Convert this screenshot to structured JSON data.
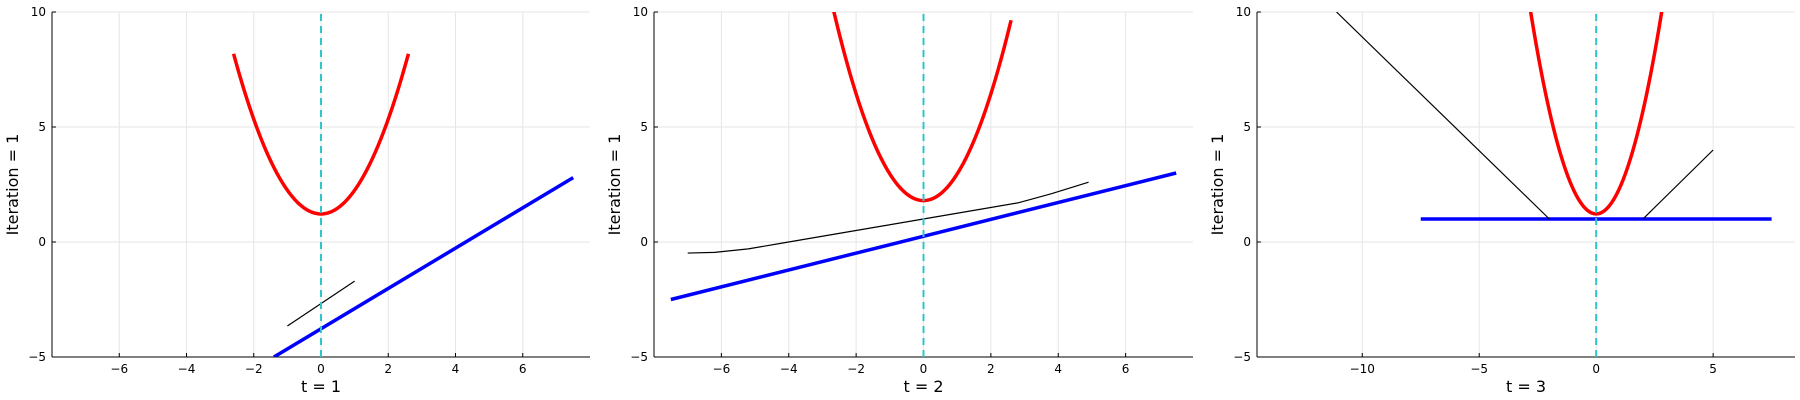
{
  "chart_data": [
    {
      "type": "line",
      "xlabel": "t = 1",
      "ylabel": "Iteration = 1",
      "xlim": [
        -8,
        8
      ],
      "ylim": [
        -5,
        10
      ],
      "xticks": [
        -6,
        -4,
        -2,
        0,
        2,
        4,
        6
      ],
      "yticks": [
        -5,
        0,
        5,
        10
      ],
      "grid": true,
      "series": [
        {
          "color": "#ff0000",
          "style": "solid",
          "width": 3.5,
          "kind": "parabola",
          "a": 1.03,
          "x0": 0,
          "y0": 1.22,
          "domain": [
            -2.6,
            2.6
          ]
        },
        {
          "color": "#0000ff",
          "style": "solid",
          "width": 3.5,
          "x": [
            -1.4,
            7.5
          ],
          "y": [
            -5,
            2.8
          ]
        },
        {
          "color": "#000000",
          "style": "solid",
          "width": 1.2,
          "x": [
            -1,
            1
          ],
          "y": [
            -3.65,
            -1.7
          ]
        },
        {
          "color": "#30c4cc",
          "style": "dashed",
          "width": 2,
          "x": [
            0,
            0
          ],
          "y": [
            -5,
            10
          ]
        }
      ]
    },
    {
      "type": "line",
      "xlabel": "t = 2",
      "ylabel": "Iteration = 1",
      "xlim": [
        -8,
        8
      ],
      "ylim": [
        -5,
        10
      ],
      "xticks": [
        -6,
        -4,
        -2,
        0,
        2,
        4,
        6
      ],
      "yticks": [
        -5,
        0,
        5,
        10
      ],
      "grid": true,
      "series": [
        {
          "color": "#ff0000",
          "style": "solid",
          "width": 3.5,
          "kind": "parabola",
          "a": 1.16,
          "x0": 0,
          "y0": 1.8,
          "domain": [
            -2.8,
            2.6
          ]
        },
        {
          "color": "#0000ff",
          "style": "solid",
          "width": 3.5,
          "x": [
            -7.5,
            7.5
          ],
          "y": [
            -2.5,
            3.0
          ]
        },
        {
          "color": "#000000",
          "style": "solid",
          "width": 1.2,
          "x": [
            -7,
            -6.2,
            -5.2,
            -4.2,
            -3.2,
            -2.2,
            -1.2,
            -0.2,
            0.8,
            1.8,
            2.8,
            3.8,
            4.9
          ],
          "y": [
            -0.48,
            -0.45,
            -0.3,
            -0.05,
            0.2,
            0.45,
            0.7,
            0.95,
            1.2,
            1.45,
            1.7,
            2.1,
            2.6
          ]
        },
        {
          "color": "#30c4cc",
          "style": "dashed",
          "width": 2,
          "x": [
            0,
            0
          ],
          "y": [
            -5,
            10
          ]
        }
      ]
    },
    {
      "type": "line",
      "xlabel": "t = 3",
      "ylabel": "Iteration = 1",
      "xlim": [
        -14.5,
        8.5
      ],
      "ylim": [
        -5,
        10
      ],
      "xticks": [
        -10,
        -5,
        0,
        5
      ],
      "yticks": [
        -5,
        0,
        5,
        10
      ],
      "grid": true,
      "series": [
        {
          "color": "#ff0000",
          "style": "solid",
          "width": 3.5,
          "kind": "parabola",
          "a": 1.12,
          "x0": 0,
          "y0": 1.22,
          "domain": [
            -3.0,
            3.0
          ]
        },
        {
          "color": "#0000ff",
          "style": "solid",
          "width": 3.5,
          "x": [
            -7.5,
            7.5
          ],
          "y": [
            1,
            1
          ]
        },
        {
          "color": "#000000",
          "style": "solid",
          "width": 1.2,
          "x": [
            -11.1,
            -2
          ],
          "y": [
            10,
            1
          ]
        },
        {
          "color": "#000000",
          "style": "solid",
          "width": 1.2,
          "x": [
            2,
            5
          ],
          "y": [
            1,
            4
          ]
        },
        {
          "color": "#30c4cc",
          "style": "dashed",
          "width": 2,
          "x": [
            0,
            0
          ],
          "y": [
            -5,
            10
          ]
        }
      ]
    }
  ]
}
